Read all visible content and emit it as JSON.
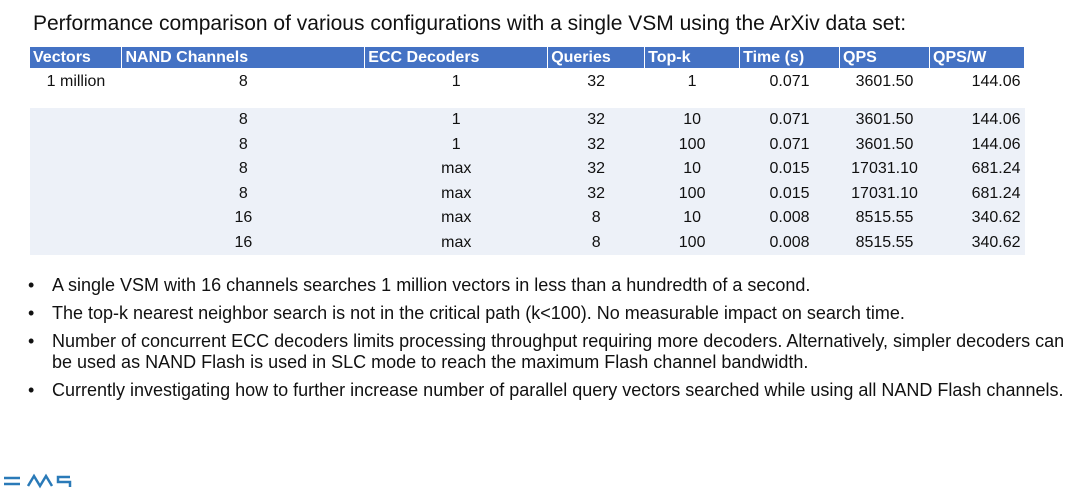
{
  "title": "Performance comparison of various configurations with a single VSM using the ArXiv data set:",
  "table": {
    "header": [
      "Vectors",
      "NAND Channels",
      "ECC Decoders",
      "Queries",
      "Top-k",
      "Time (s)",
      "QPS",
      "QPS/W"
    ],
    "rows": [
      {
        "vectors": "1 million",
        "cells": [
          "8",
          "1",
          "32",
          "1",
          "0.071",
          "3601.50",
          "144.06"
        ]
      },
      {
        "cells": [
          "8",
          "1",
          "32",
          "10",
          "0.071",
          "3601.50",
          "144.06"
        ]
      },
      {
        "cells": [
          "8",
          "1",
          "32",
          "100",
          "0.071",
          "3601.50",
          "144.06"
        ]
      },
      {
        "cells": [
          "8",
          "max",
          "32",
          "10",
          "0.015",
          "17031.10",
          "681.24"
        ]
      },
      {
        "cells": [
          "8",
          "max",
          "32",
          "100",
          "0.015",
          "17031.10",
          "681.24"
        ]
      },
      {
        "cells": [
          "16",
          "max",
          "8",
          "10",
          "0.008",
          "8515.55",
          "340.62"
        ]
      },
      {
        "cells": [
          "16",
          "max",
          "8",
          "100",
          "0.008",
          "8515.55",
          "340.62"
        ]
      }
    ]
  },
  "bullets": [
    "A single VSM with 16 channels searches 1 million vectors in less than a hundredth of a second.",
    "The top-k nearest neighbor search is not in the critical path (k<100). No measurable impact on search time.",
    "Number of concurrent ECC decoders limits processing throughput requiring more decoders. Alternatively, simpler decoders can be used as NAND Flash is used in SLC mode to reach the maximum Flash channel bandwidth.",
    "Currently investigating how to further increase number of parallel query vectors searched while using all NAND Flash channels."
  ]
}
